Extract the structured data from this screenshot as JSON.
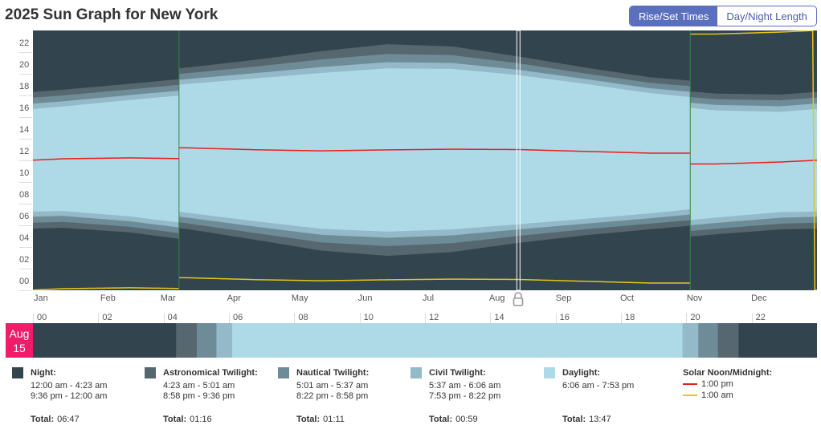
{
  "title": "2025 Sun Graph for New York",
  "toggle": {
    "options": [
      "Rise/Set Times",
      "Day/Night Length"
    ],
    "selected": "Rise/Set Times"
  },
  "selected_date": {
    "month": "Aug",
    "day": "15",
    "day_of_year": 226
  },
  "colors": {
    "night": "#32444d",
    "astronomical": "#57676f",
    "nautical": "#6d8c98",
    "civil": "#94b9c8",
    "daylight": "#aed9e6",
    "noon": "#ee1c1c",
    "midnight": "#e6c619",
    "date_box": "#ee1d6a",
    "dst_line": "#2e8b3a"
  },
  "chart_data": {
    "type": "area",
    "ylabel": "",
    "ylim": [
      0,
      24
    ],
    "y_ticks": [
      "00",
      "02",
      "04",
      "06",
      "08",
      "10",
      "12",
      "14",
      "16",
      "18",
      "20",
      "22"
    ],
    "x_ticks": [
      "Jan",
      "Feb",
      "Mar",
      "Apr",
      "May",
      "Jun",
      "Jul",
      "Aug",
      "Sep",
      "Oct",
      "Nov",
      "Dec"
    ],
    "dst_period_days": [
      68,
      306
    ],
    "note_standard_time_hours": "values below in standard time at mid-month",
    "series": {
      "astro_start": [
        5.77,
        5.35,
        4.62,
        3.65,
        2.67,
        2.18,
        2.53,
        3.38,
        4.08,
        4.63,
        5.17,
        5.62
      ],
      "nautical_start": [
        6.32,
        5.87,
        5.15,
        4.27,
        3.43,
        3.08,
        3.35,
        4.02,
        4.63,
        5.15,
        5.68,
        6.15
      ],
      "civil_start": [
        6.87,
        6.38,
        5.68,
        4.87,
        4.13,
        3.85,
        4.07,
        4.62,
        5.15,
        5.65,
        6.22,
        6.7
      ],
      "sunrise": [
        7.32,
        6.83,
        6.13,
        5.37,
        4.68,
        4.42,
        4.62,
        5.1,
        5.6,
        6.1,
        6.72,
        7.22
      ],
      "sunset": [
        16.98,
        17.58,
        18.08,
        18.58,
        19.07,
        19.5,
        19.45,
        18.88,
        18.07,
        17.22,
        16.62,
        16.48
      ],
      "civil_end": [
        17.45,
        18.03,
        18.53,
        19.07,
        19.62,
        20.07,
        20.0,
        19.37,
        18.52,
        17.67,
        17.12,
        17.0
      ],
      "nautical_end": [
        18.0,
        18.55,
        19.07,
        19.67,
        20.32,
        20.83,
        20.72,
        19.97,
        19.03,
        18.17,
        17.65,
        17.55
      ],
      "astro_end": [
        18.53,
        19.07,
        19.6,
        20.3,
        21.08,
        21.73,
        21.53,
        20.6,
        19.58,
        18.68,
        18.17,
        18.08
      ],
      "solar_noon": [
        12.15,
        12.23,
        12.15,
        11.98,
        11.88,
        11.97,
        12.03,
        12.0,
        11.83,
        11.67,
        11.67,
        11.85
      ]
    }
  },
  "hour_ticks": [
    "00",
    "02",
    "04",
    "06",
    "08",
    "10",
    "12",
    "14",
    "16",
    "18",
    "20",
    "22"
  ],
  "day_segments": [
    {
      "kind": "night",
      "from": 0,
      "to": 4.383
    },
    {
      "kind": "astronomical",
      "from": 4.383,
      "to": 5.017
    },
    {
      "kind": "nautical",
      "from": 5.017,
      "to": 5.617
    },
    {
      "kind": "civil",
      "from": 5.617,
      "to": 6.1
    },
    {
      "kind": "daylight",
      "from": 6.1,
      "to": 19.883
    },
    {
      "kind": "civil",
      "from": 19.883,
      "to": 20.367
    },
    {
      "kind": "nautical",
      "from": 20.367,
      "to": 20.967
    },
    {
      "kind": "astronomical",
      "from": 20.967,
      "to": 21.6
    },
    {
      "kind": "night",
      "from": 21.6,
      "to": 24
    }
  ],
  "legend": [
    {
      "key": "night",
      "name": "Night:",
      "times": [
        "12:00 am - 4:23 am",
        "9:36 pm - 12:00 am"
      ],
      "total_label": "Total:",
      "total": "06:47"
    },
    {
      "key": "astronomical",
      "name": "Astronomical Twilight:",
      "times": [
        "4:23 am - 5:01 am",
        "8:58 pm - 9:36 pm"
      ],
      "total_label": "Total:",
      "total": "01:16"
    },
    {
      "key": "nautical",
      "name": "Nautical Twilight:",
      "times": [
        "5:01 am - 5:37 am",
        "8:22 pm - 8:58 pm"
      ],
      "total_label": "Total:",
      "total": "01:11"
    },
    {
      "key": "civil",
      "name": "Civil Twilight:",
      "times": [
        "5:37 am - 6:06 am",
        "7:53 pm - 8:22 pm"
      ],
      "total_label": "Total:",
      "total": "00:59"
    },
    {
      "key": "daylight",
      "name": "Daylight:",
      "times": [
        "6:06 am - 7:53 pm"
      ],
      "total_label": "Total:",
      "total": "13:47"
    }
  ],
  "solar": {
    "name": "Solar Noon/Midnight:",
    "noon": "1:00 pm",
    "midnight": "1:00 am"
  }
}
